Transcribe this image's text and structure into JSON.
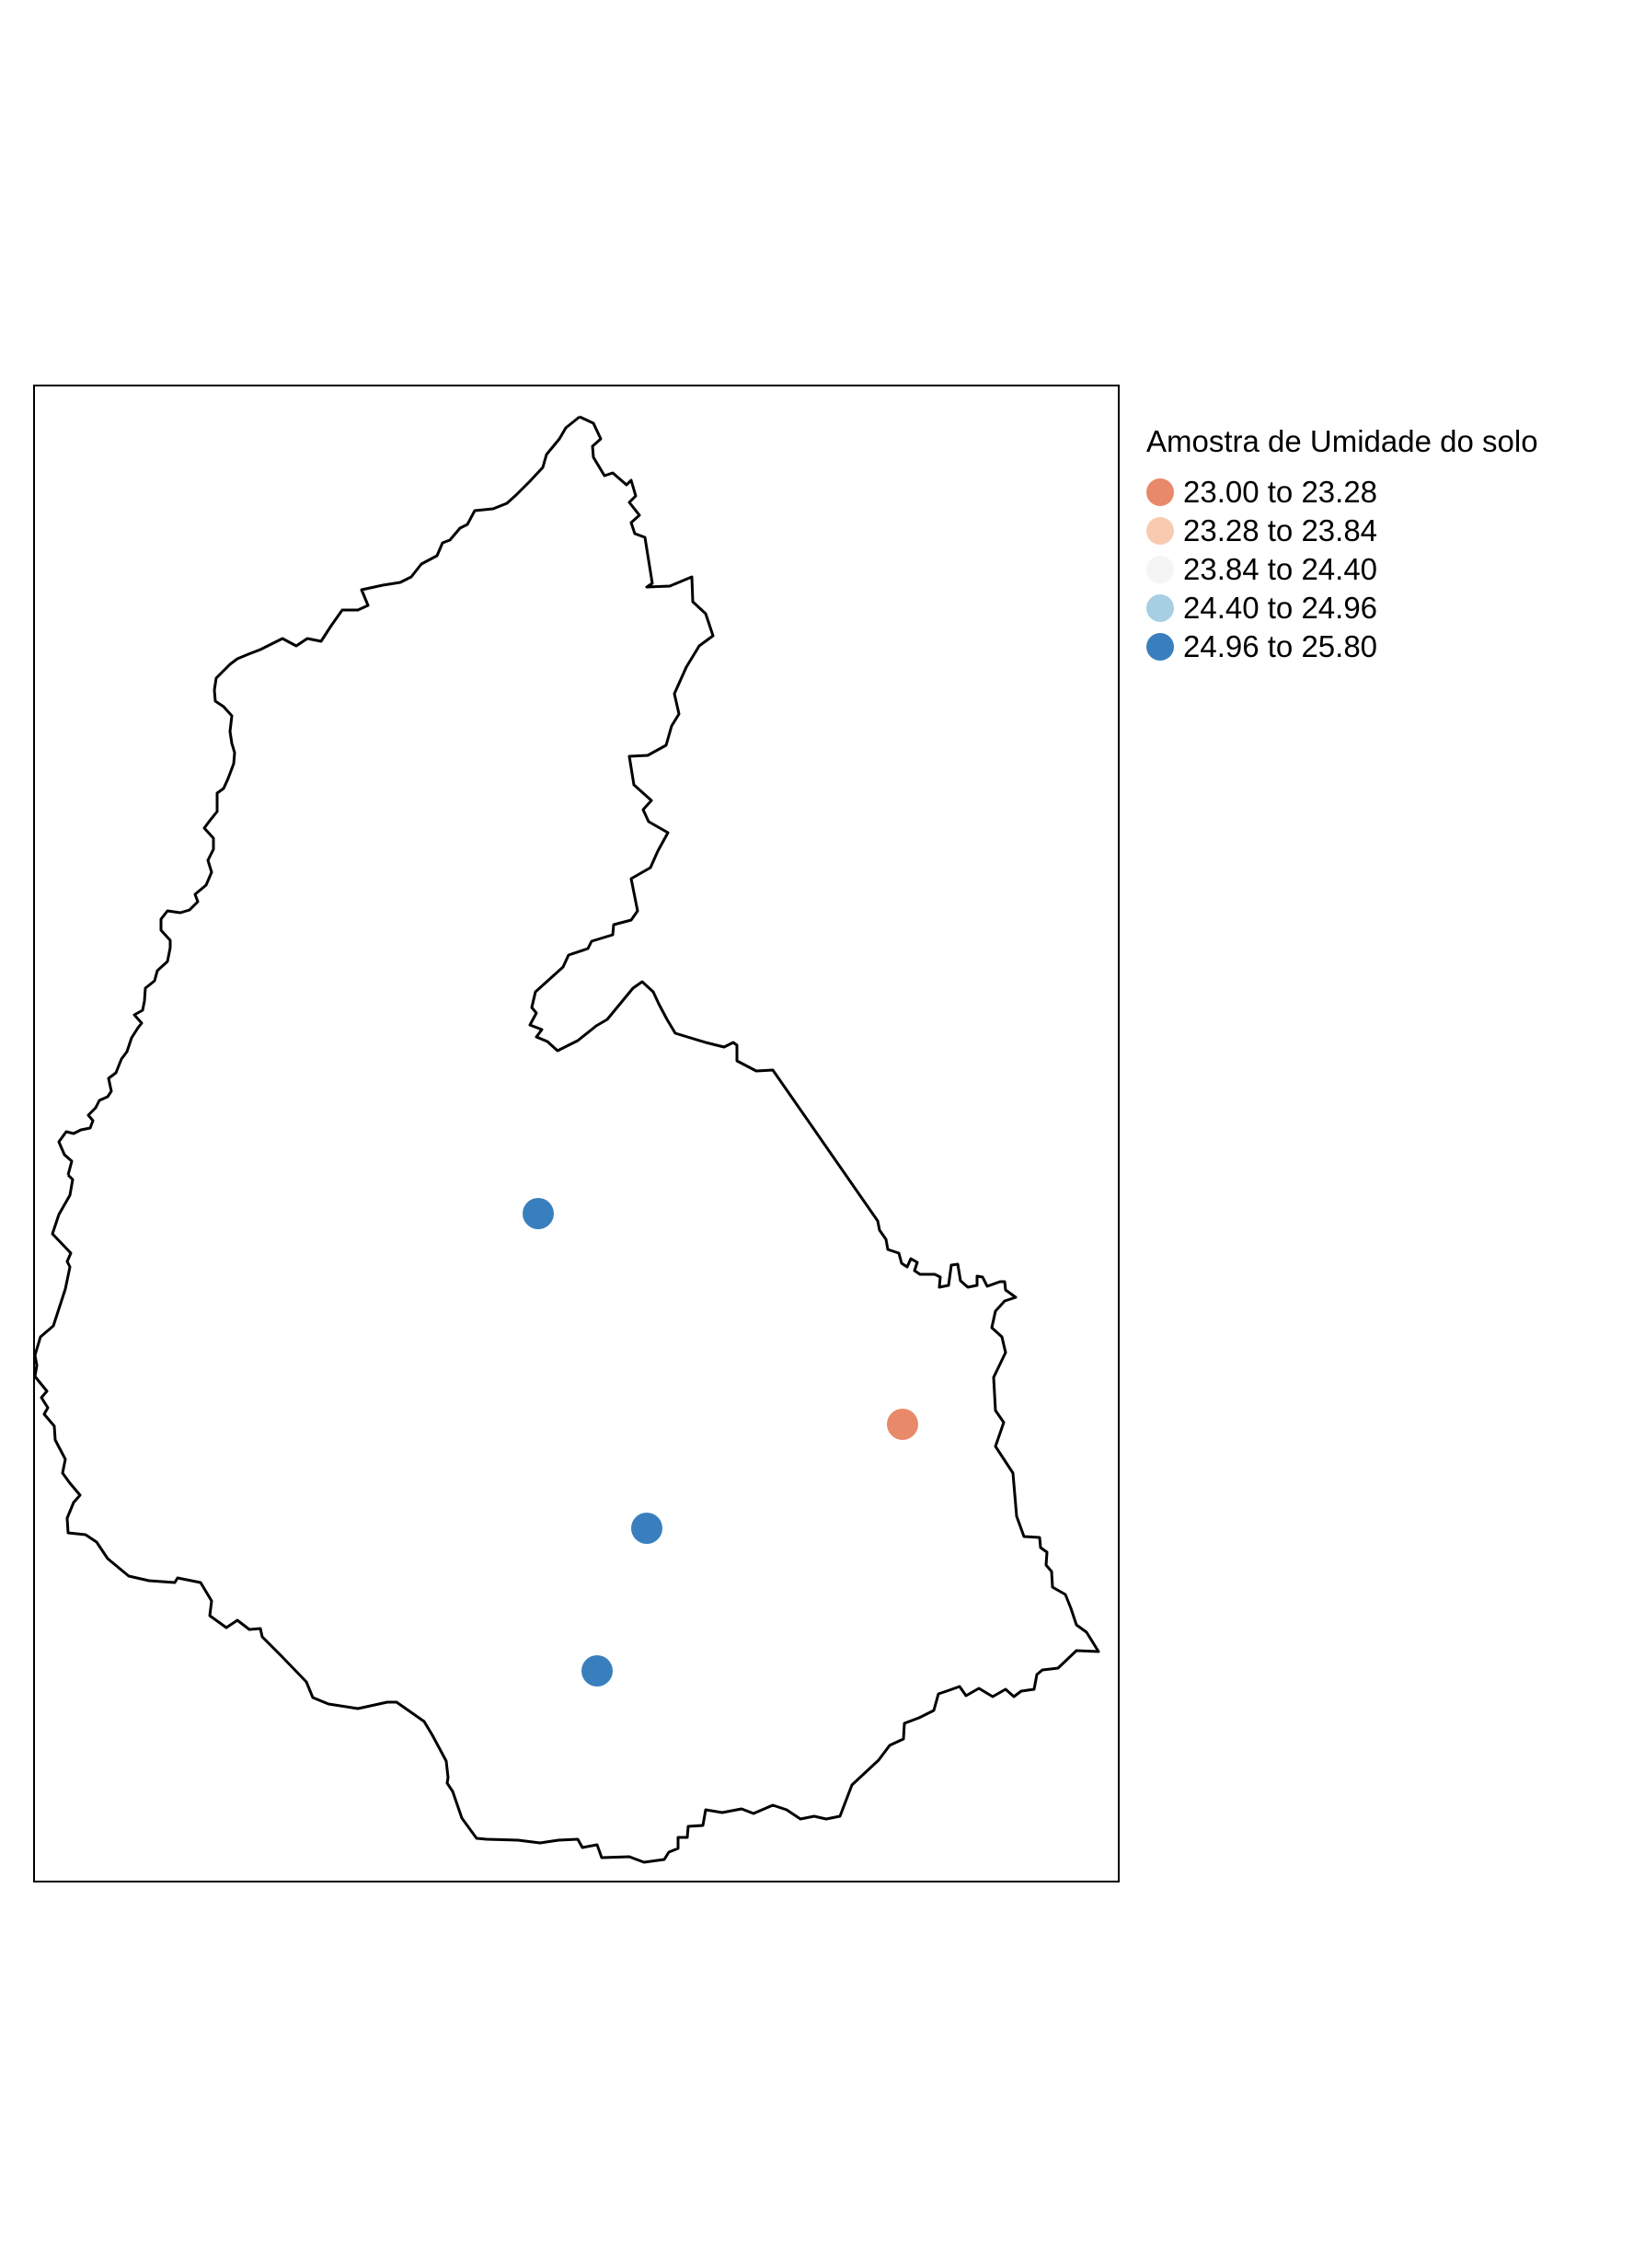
{
  "legend": {
    "title": "Amostra de Umidade do solo",
    "items": [
      {
        "label": "23.00 to 23.28",
        "color": "#E8896A"
      },
      {
        "label": "23.28 to 23.84",
        "color": "#F8CBB0"
      },
      {
        "label": "23.84 to 24.40",
        "color": "#F5F5F5"
      },
      {
        "label": "24.40 to 24.96",
        "color": "#A6CFE4"
      },
      {
        "label": "24.96 to 25.80",
        "color": "#3A7FBD"
      }
    ]
  },
  "samples": [
    {
      "name": "sample-point-north",
      "class": 4
    },
    {
      "name": "sample-point-east",
      "class": 0
    },
    {
      "name": "sample-point-center",
      "class": 4
    },
    {
      "name": "sample-point-south",
      "class": 4
    }
  ],
  "styles": {
    "boundary_color": "#000000",
    "frame_color": "#000000"
  }
}
